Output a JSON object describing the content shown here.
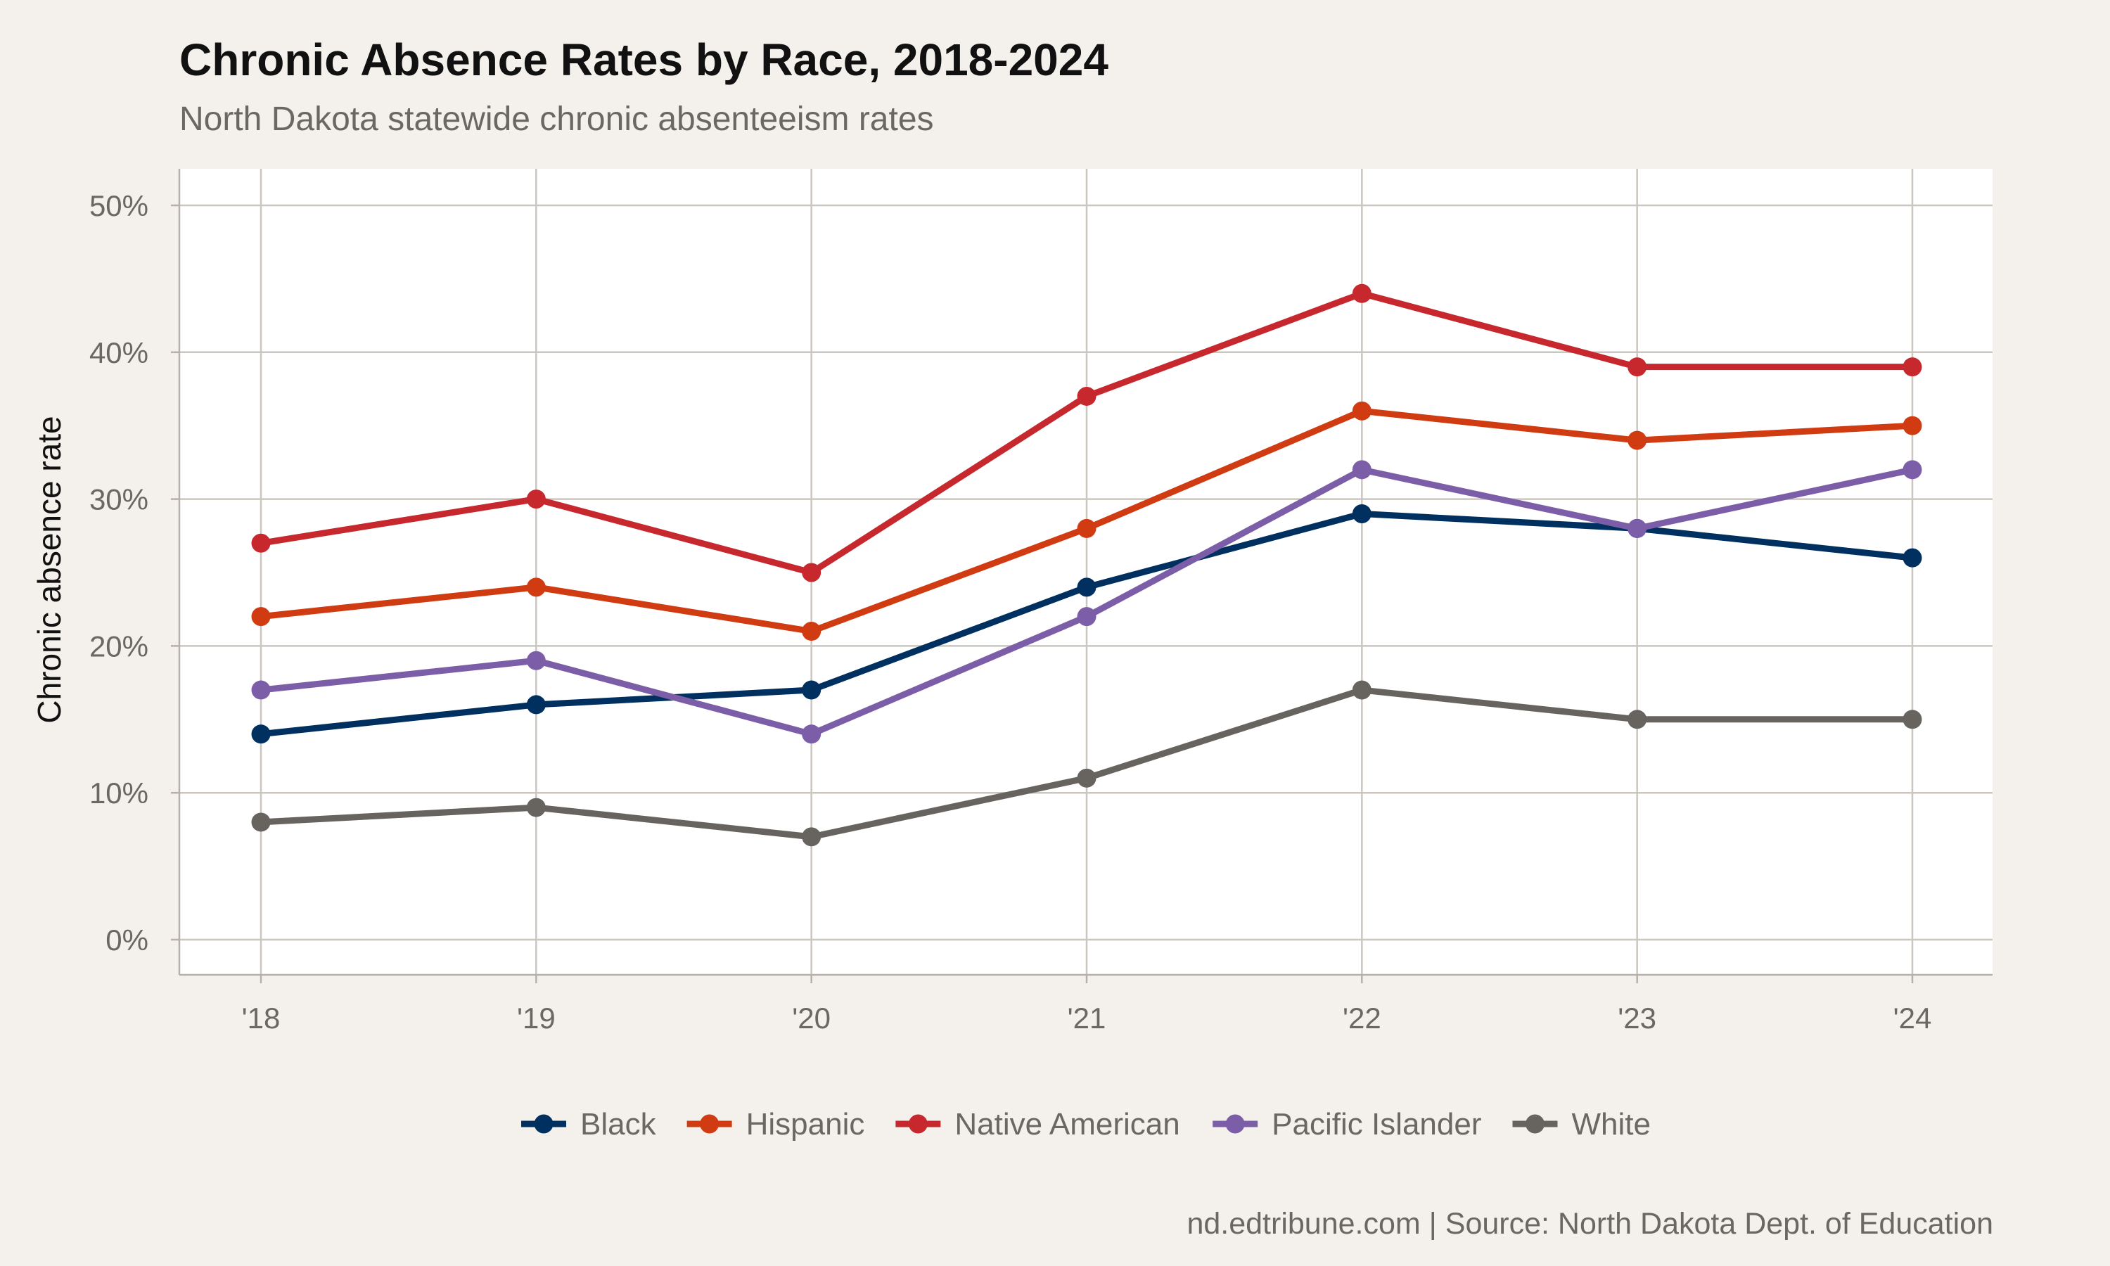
{
  "chart_data": {
    "type": "line",
    "title": "Chronic Absence Rates by Race, 2018-2024",
    "subtitle": "North Dakota statewide chronic absenteeism rates",
    "caption": "nd.edtribune.com | Source: North Dakota Dept. of Education",
    "xlabel": "",
    "ylabel": "Chronic absence rate",
    "categories": [
      "'18",
      "'19",
      "'20",
      "'21",
      "'22",
      "'23",
      "'24"
    ],
    "ylim": [
      0,
      50
    ],
    "yticks": [
      0,
      10,
      20,
      30,
      40,
      50
    ],
    "ytick_labels": [
      "0%",
      "10%",
      "20%",
      "30%",
      "40%",
      "50%"
    ],
    "grid": true,
    "legend_position": "bottom",
    "series": [
      {
        "name": "Black",
        "color": "#00305f",
        "values": [
          14,
          16,
          17,
          24,
          29,
          28,
          26
        ]
      },
      {
        "name": "Hispanic",
        "color": "#d03b12",
        "values": [
          22,
          24,
          21,
          28,
          36,
          34,
          35
        ]
      },
      {
        "name": "Native American",
        "color": "#c6282e",
        "values": [
          27,
          30,
          25,
          37,
          44,
          39,
          39
        ]
      },
      {
        "name": "Pacific Islander",
        "color": "#7c5ea8",
        "values": [
          17,
          19,
          14,
          22,
          32,
          28,
          32
        ]
      },
      {
        "name": "White",
        "color": "#67635f",
        "values": [
          8,
          9,
          7,
          11,
          17,
          15,
          15
        ]
      }
    ]
  }
}
